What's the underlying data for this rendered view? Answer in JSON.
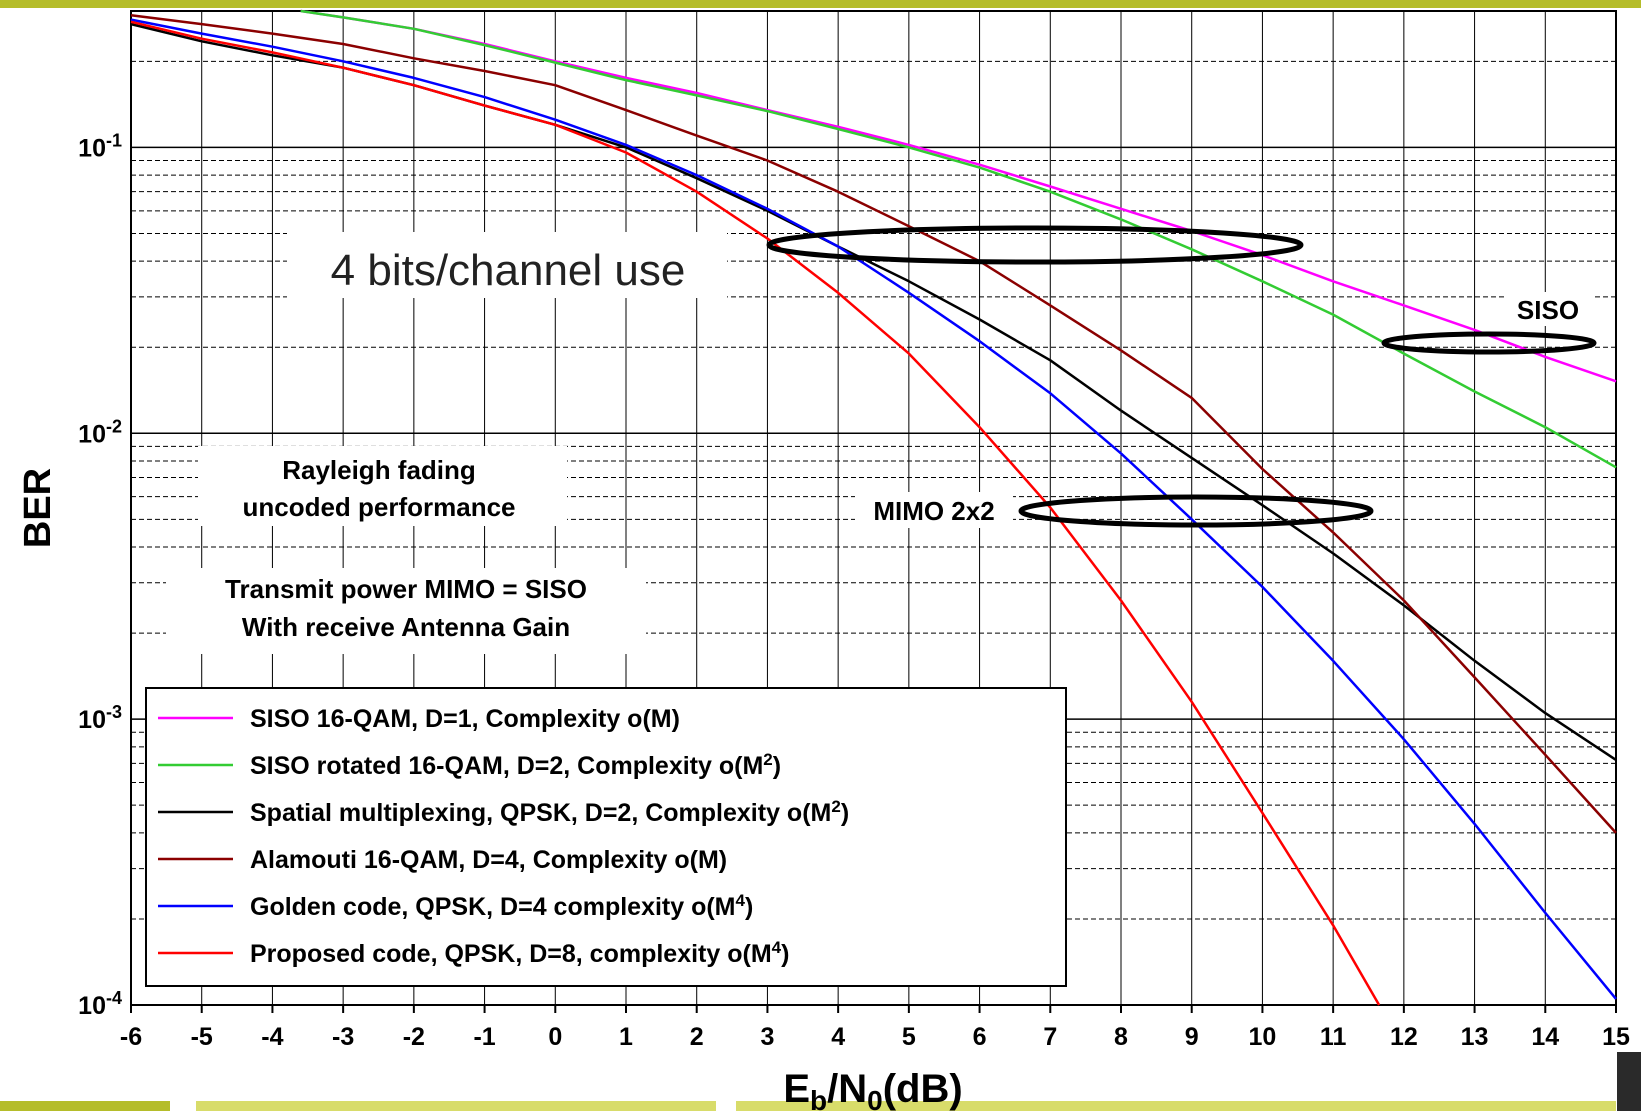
{
  "chart_data": {
    "type": "line",
    "xlabel": "Eb/N0(dB)",
    "xlabel_parts": {
      "e": "E",
      "e_sub": "b",
      "n": "/N",
      "n_sub": "0",
      "unit": "(dB)"
    },
    "ylabel": "BER",
    "x_ticks": [
      "-6",
      "-5",
      "-4",
      "-3",
      "-2",
      "-1",
      "0",
      "1",
      "2",
      "3",
      "4",
      "5",
      "6",
      "7",
      "8",
      "9",
      "10",
      "11",
      "12",
      "13",
      "14",
      "15"
    ],
    "y_ticks": [
      {
        "value": 0.1,
        "base": "10",
        "exp": "-1"
      },
      {
        "value": 0.01,
        "base": "10",
        "exp": "-2"
      },
      {
        "value": 0.001,
        "base": "10",
        "exp": "-3"
      },
      {
        "value": 0.0001,
        "base": "10",
        "exp": "-4"
      }
    ],
    "xlim": [
      -6,
      15
    ],
    "ylim": [
      0.0001,
      0.3
    ],
    "y_scale": "log",
    "grid": true,
    "legend_position": "bottom-left",
    "series": [
      {
        "name": "SISO 16-QAM, D=1, Complexity o(M)",
        "color": "#ff00ff",
        "x": [
          -3.6,
          -3,
          -2,
          -1,
          0,
          1,
          2,
          3,
          4,
          5,
          6,
          7,
          8,
          9,
          10,
          11,
          12,
          13,
          14,
          15
        ],
        "y": [
          0.3,
          0.285,
          0.26,
          0.23,
          0.2,
          0.175,
          0.155,
          0.135,
          0.118,
          0.102,
          0.087,
          0.073,
          0.061,
          0.051,
          0.042,
          0.034,
          0.028,
          0.023,
          0.0185,
          0.0152
        ]
      },
      {
        "name": "SISO rotated 16-QAM, D=2, Complexity o(M",
        "name_sup": "2",
        "name_tail": ")",
        "color": "#33cc33",
        "x": [
          -3.6,
          -3,
          -2,
          -1,
          0,
          1,
          2,
          3,
          4,
          5,
          6,
          7,
          8,
          9,
          10,
          11,
          12,
          13,
          14,
          15
        ],
        "y": [
          0.3,
          0.285,
          0.26,
          0.228,
          0.198,
          0.172,
          0.152,
          0.134,
          0.116,
          0.1,
          0.085,
          0.07,
          0.056,
          0.044,
          0.034,
          0.026,
          0.019,
          0.014,
          0.0105,
          0.0076
        ]
      },
      {
        "name": "Spatial multiplexing, QPSK, D=2, Complexity o(M",
        "name_sup": "2",
        "name_tail": ")",
        "color": "#000000",
        "x": [
          -6,
          -5,
          -4,
          -3,
          -2,
          -1,
          0,
          1,
          2,
          3,
          4,
          5,
          6,
          7,
          8,
          9,
          10,
          11,
          12,
          13,
          14,
          15
        ],
        "y": [
          0.27,
          0.235,
          0.21,
          0.19,
          0.165,
          0.14,
          0.12,
          0.1,
          0.078,
          0.06,
          0.045,
          0.034,
          0.025,
          0.018,
          0.012,
          0.0082,
          0.0056,
          0.0038,
          0.0025,
          0.0016,
          0.00105,
          0.00072
        ]
      },
      {
        "name": "Alamouti 16-QAM, D=4, Complexity o(M)",
        "color": "#8b0000",
        "x": [
          -6,
          -5,
          -4,
          -3,
          -2,
          -1,
          0,
          1,
          2,
          3,
          4,
          5,
          6,
          7,
          8,
          9,
          10,
          11,
          12,
          13,
          14,
          15
        ],
        "y": [
          0.29,
          0.27,
          0.25,
          0.23,
          0.205,
          0.185,
          0.165,
          0.135,
          0.11,
          0.09,
          0.07,
          0.053,
          0.04,
          0.028,
          0.0195,
          0.0133,
          0.0075,
          0.0045,
          0.0026,
          0.0014,
          0.00075,
          0.0004
        ]
      },
      {
        "name": "Golden code, QPSK, D=4 complexity o(M",
        "name_sup": "4",
        "name_tail": ")",
        "color": "#0000ff",
        "x": [
          -6,
          -5,
          -4,
          -3,
          -2,
          -1,
          0,
          1,
          2,
          3,
          4,
          5,
          6,
          7,
          8,
          9,
          10,
          11,
          12,
          13,
          14,
          15
        ],
        "y": [
          0.28,
          0.25,
          0.225,
          0.2,
          0.175,
          0.15,
          0.125,
          0.102,
          0.08,
          0.061,
          0.045,
          0.031,
          0.021,
          0.0138,
          0.0085,
          0.005,
          0.0029,
          0.0016,
          0.00085,
          0.00043,
          0.00021,
          0.000105
        ]
      },
      {
        "name": "Proposed code, QPSK, D=8, complexity o(M",
        "name_sup": "4",
        "name_tail": ")",
        "color": "#ff0000",
        "x": [
          -6,
          -5,
          -4,
          -3,
          -2,
          -1,
          0,
          1,
          2,
          3,
          4,
          5,
          6,
          7,
          8,
          9,
          10,
          11,
          11.65
        ],
        "y": [
          0.275,
          0.24,
          0.215,
          0.19,
          0.165,
          0.14,
          0.12,
          0.096,
          0.07,
          0.048,
          0.031,
          0.019,
          0.0105,
          0.0055,
          0.0026,
          0.00115,
          0.00047,
          0.00019,
          0.0001
        ]
      }
    ],
    "annotations": {
      "bits": "4 bits/channel use",
      "siso": "SISO",
      "mimo": "MIMO 2x2",
      "fading_1": "Rayleigh fading",
      "fading_2": "uncoded performance",
      "power_1": "Transmit power MIMO = SISO",
      "power_2": "With receive Antenna Gain"
    }
  }
}
